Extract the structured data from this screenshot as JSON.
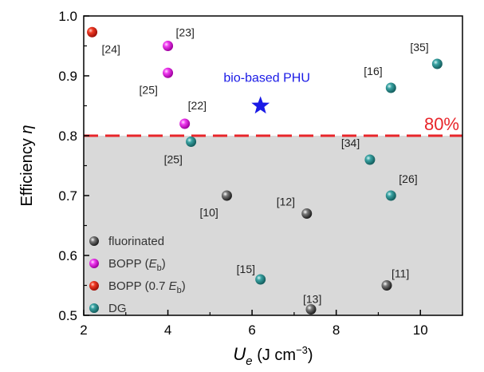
{
  "chart_data": {
    "type": "scatter",
    "xlabel_main": "U",
    "xlabel_sub": "e",
    "xlabel_units_pre": " (J cm",
    "xlabel_units_sup": "−3",
    "xlabel_units_post": ")",
    "ylabel_main": "Efficiency ",
    "ylabel_symbol": "η",
    "xlim": [
      2,
      11
    ],
    "ylim": [
      0.5,
      1.0
    ],
    "xticks": [
      2,
      4,
      6,
      8,
      10
    ],
    "yticks": [
      0.5,
      0.6,
      0.7,
      0.8,
      0.9,
      1.0
    ],
    "xtick_labels": [
      "2",
      "4",
      "6",
      "8",
      "10"
    ],
    "ytick_labels": [
      "0.5",
      "0.6",
      "0.7",
      "0.8",
      "0.9",
      "1.0"
    ],
    "threshold": {
      "y": 0.8,
      "label": "80%",
      "color": "#e8262b"
    },
    "shaded_region_color": "#d9d9d9",
    "highlight": {
      "x": 6.2,
      "y": 0.85,
      "label": "bio-based PHU",
      "color": "#1a1ae6"
    },
    "series": [
      {
        "name": "fluorinated",
        "color": "#4a4a4a",
        "points": [
          {
            "x": 5.4,
            "y": 0.7,
            "label": "[10]"
          },
          {
            "x": 7.3,
            "y": 0.67,
            "label": "[12]"
          },
          {
            "x": 9.2,
            "y": 0.55,
            "label": "[11]"
          },
          {
            "x": 7.4,
            "y": 0.51,
            "label": "[13]"
          }
        ]
      },
      {
        "name_main": "BOPP (",
        "name_sym": "E",
        "name_sub": "b",
        "name_tail": ")",
        "color": "#e61ee6",
        "points": [
          {
            "x": 4.0,
            "y": 0.95,
            "label": "[23]"
          },
          {
            "x": 4.0,
            "y": 0.905,
            "label": "[25]"
          },
          {
            "x": 4.4,
            "y": 0.82,
            "label": "[22]"
          }
        ]
      },
      {
        "name_main": "BOPP (0.7 ",
        "name_sym": "E",
        "name_sub": "b",
        "name_tail": ")",
        "color": "#e62a1e",
        "points": [
          {
            "x": 2.2,
            "y": 0.973,
            "label": "[24]"
          }
        ]
      },
      {
        "name": "DG",
        "color": "#2b8c8c",
        "points": [
          {
            "x": 4.55,
            "y": 0.79,
            "label": "[25]"
          },
          {
            "x": 8.8,
            "y": 0.76,
            "label": "[34]"
          },
          {
            "x": 9.3,
            "y": 0.7,
            "label": "[26]"
          },
          {
            "x": 6.2,
            "y": 0.56,
            "label": "[15]"
          },
          {
            "x": 9.3,
            "y": 0.88,
            "label": "[16]"
          },
          {
            "x": 10.4,
            "y": 0.92,
            "label": "[35]"
          }
        ]
      }
    ],
    "legend_position": "bottom-left"
  }
}
